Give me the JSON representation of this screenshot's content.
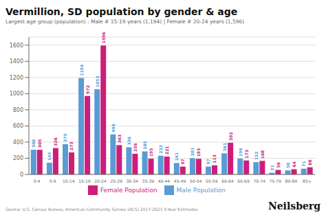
{
  "chart_data": {
    "type": "bar",
    "title": "Vermillion, SD population by gender & age",
    "subtitle": "Largest age group (population) : Male # 15-19 years (1,194) | Female # 20-24 years (1,596)",
    "categories": [
      "0-4",
      "5-9",
      "10-14",
      "15-19",
      "20-24",
      "25-29",
      "30-34",
      "35-39",
      "40-44",
      "45-49",
      "50-54",
      "55-59",
      "60-64",
      "65-69",
      "70-74",
      "75-79",
      "80-84",
      "85+"
    ],
    "series": [
      {
        "name": "Male Population",
        "color": "#5B9BD5",
        "values": [
          306,
          145,
          375,
          1194,
          1053,
          496,
          336,
          285,
          232,
          141,
          201,
          97,
          261,
          196,
          152,
          21,
          50,
          71
        ]
      },
      {
        "name": "Female Population",
        "color": "#CC1E78",
        "values": [
          305,
          326,
          273,
          972,
          1596,
          363,
          256,
          195,
          221,
          97,
          193,
          113,
          392,
          173,
          168,
          56,
          64,
          88
        ]
      }
    ],
    "ylim": [
      0,
      1700
    ],
    "yticks": [
      0,
      200,
      400,
      600,
      800,
      1000,
      1200,
      1400,
      1600
    ],
    "grid": true,
    "legend": "bottom",
    "data_labels": true,
    "annotations": [
      "Source: U.S. Census Bureau, American Community Survey (ACS) 2017-2021 5-Year Estimates",
      "Neilsberg"
    ]
  }
}
